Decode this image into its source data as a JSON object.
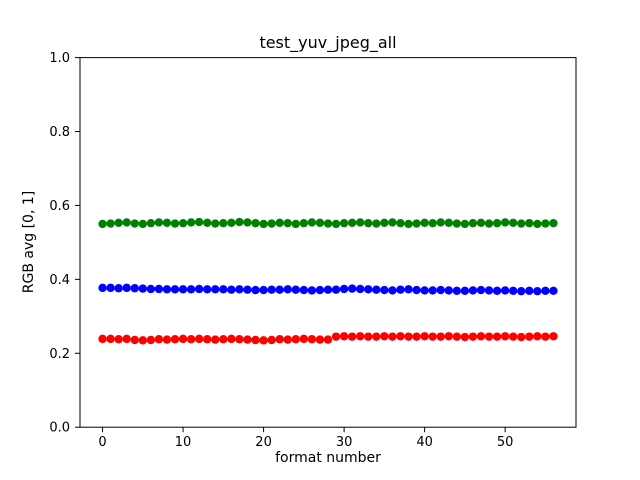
{
  "figure": {
    "title": "test_yuv_jpeg_all",
    "xlabel": "format number",
    "ylabel": "RGB avg [0, 1]",
    "background_color": "#ffffff",
    "frame_color": "#000000"
  },
  "chart_data": {
    "type": "scatter",
    "title": "test_yuv_jpeg_all",
    "xlabel": "format number",
    "ylabel": "RGB avg [0, 1]",
    "grid": false,
    "legend_position": "none",
    "marker": "o",
    "xlim": [
      -2.8,
      58.8
    ],
    "ylim": [
      0.0,
      1.0
    ],
    "x_ticks": [
      {
        "value": 0,
        "label": "0"
      },
      {
        "value": 10,
        "label": "10"
      },
      {
        "value": 20,
        "label": "20"
      },
      {
        "value": 30,
        "label": "30"
      },
      {
        "value": 40,
        "label": "40"
      },
      {
        "value": 50,
        "label": "50"
      }
    ],
    "y_ticks": [
      {
        "value": 0.0,
        "label": "0.0"
      },
      {
        "value": 0.2,
        "label": "0.2"
      },
      {
        "value": 0.4,
        "label": "0.4"
      },
      {
        "value": 0.6,
        "label": "0.6"
      },
      {
        "value": 0.8,
        "label": "0.8"
      },
      {
        "value": 1.0,
        "label": "1.0"
      }
    ],
    "x": [
      0,
      1,
      2,
      3,
      4,
      5,
      6,
      7,
      8,
      9,
      10,
      11,
      12,
      13,
      14,
      15,
      16,
      17,
      18,
      19,
      20,
      21,
      22,
      23,
      24,
      25,
      26,
      27,
      28,
      29,
      30,
      31,
      32,
      33,
      34,
      35,
      36,
      37,
      38,
      39,
      40,
      41,
      42,
      43,
      44,
      45,
      46,
      47,
      48,
      49,
      50,
      51,
      52,
      53,
      54,
      55,
      56
    ],
    "series": [
      {
        "name": "green",
        "color": "#008000",
        "values": [
          0.55,
          0.551,
          0.553,
          0.554,
          0.551,
          0.55,
          0.552,
          0.554,
          0.553,
          0.551,
          0.552,
          0.554,
          0.555,
          0.553,
          0.551,
          0.552,
          0.553,
          0.555,
          0.554,
          0.552,
          0.55,
          0.551,
          0.553,
          0.552,
          0.55,
          0.552,
          0.554,
          0.553,
          0.551,
          0.55,
          0.552,
          0.553,
          0.554,
          0.552,
          0.551,
          0.553,
          0.554,
          0.552,
          0.55,
          0.551,
          0.553,
          0.552,
          0.554,
          0.553,
          0.551,
          0.55,
          0.552,
          0.553,
          0.551,
          0.552,
          0.554,
          0.553,
          0.551,
          0.552,
          0.55,
          0.551,
          0.552
        ]
      },
      {
        "name": "blue",
        "color": "#0000ff",
        "values": [
          0.377,
          0.377,
          0.376,
          0.377,
          0.376,
          0.375,
          0.374,
          0.374,
          0.373,
          0.373,
          0.373,
          0.373,
          0.374,
          0.373,
          0.373,
          0.373,
          0.372,
          0.373,
          0.372,
          0.371,
          0.371,
          0.372,
          0.372,
          0.373,
          0.372,
          0.371,
          0.37,
          0.371,
          0.372,
          0.372,
          0.374,
          0.375,
          0.374,
          0.373,
          0.372,
          0.371,
          0.37,
          0.372,
          0.373,
          0.371,
          0.37,
          0.37,
          0.371,
          0.37,
          0.369,
          0.369,
          0.37,
          0.371,
          0.37,
          0.369,
          0.37,
          0.369,
          0.368,
          0.369,
          0.368,
          0.369,
          0.369
        ]
      },
      {
        "name": "red",
        "color": "#ff0000",
        "values": [
          0.239,
          0.239,
          0.238,
          0.239,
          0.236,
          0.235,
          0.236,
          0.238,
          0.237,
          0.238,
          0.239,
          0.238,
          0.239,
          0.238,
          0.237,
          0.238,
          0.239,
          0.238,
          0.237,
          0.236,
          0.235,
          0.236,
          0.238,
          0.237,
          0.238,
          0.239,
          0.238,
          0.237,
          0.237,
          0.245,
          0.246,
          0.245,
          0.246,
          0.245,
          0.245,
          0.246,
          0.245,
          0.246,
          0.245,
          0.245,
          0.246,
          0.245,
          0.245,
          0.246,
          0.245,
          0.244,
          0.245,
          0.246,
          0.245,
          0.245,
          0.246,
          0.245,
          0.244,
          0.245,
          0.246,
          0.245,
          0.246
        ]
      }
    ]
  }
}
